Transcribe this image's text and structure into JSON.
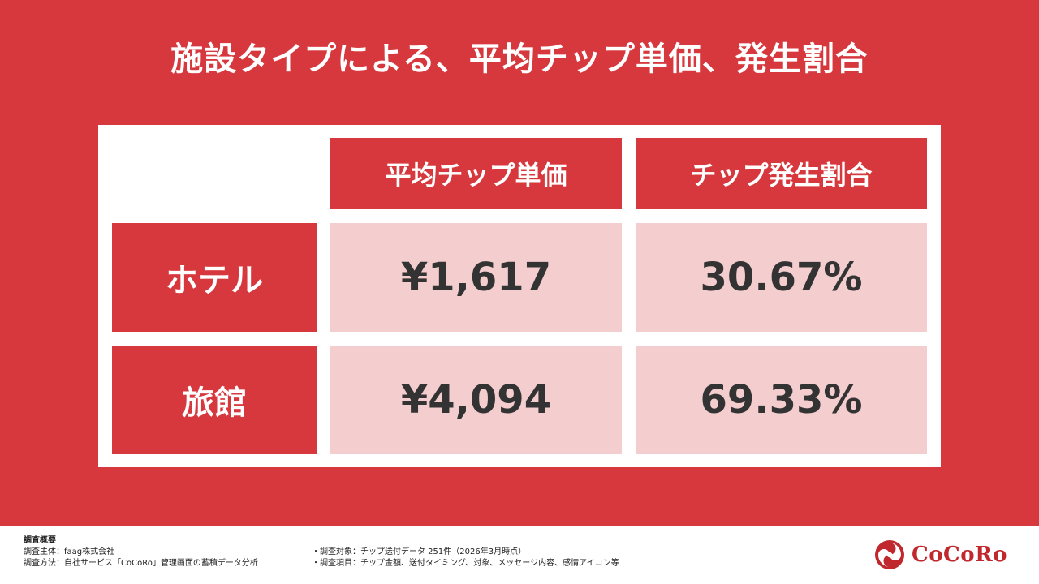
{
  "title": "施設タイプによる、平均チップ単価、発生割合",
  "colors": {
    "accent": "#d7383d",
    "cell_bg": "#f4cdcf",
    "value_text": "#333333",
    "logo": "#c0282e"
  },
  "table": {
    "headers": [
      "平均チップ単価",
      "チップ発生割合"
    ],
    "rows": [
      {
        "label": "ホテル",
        "avg_tip": "¥1,617",
        "rate": "30.67%"
      },
      {
        "label": "旅館",
        "avg_tip": "¥4,094",
        "rate": "69.33%"
      }
    ]
  },
  "footer": {
    "heading": "調査概要",
    "left": [
      "調査主体：faag株式会社",
      "調査方法：自社サービス「CoCoRo」管理画面の蓄積データ分析"
    ],
    "right": [
      "・調査対象：チップ送付データ 251件（2026年3月時点）",
      "・調査項目：チップ金額、送付タイミング、対象、メッセージ内容、感情アイコン等"
    ]
  },
  "logo": {
    "text": "CoCoRo",
    "icon": "cocoro-logo-icon"
  }
}
